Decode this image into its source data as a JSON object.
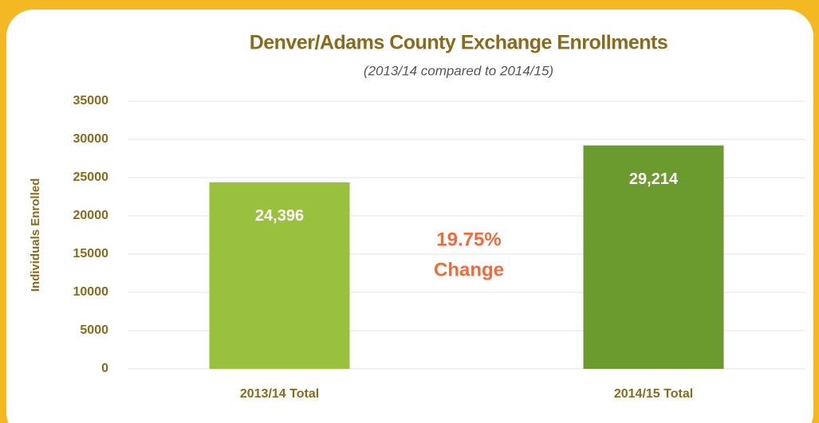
{
  "chart_data": {
    "type": "bar",
    "title": "Denver/Adams County Exchange Enrollments",
    "subtitle": "(2013/14 compared to 2014/15)",
    "y_label": "Individuals Enrolled",
    "categories": [
      "2013/14 Total",
      "2014/15 Total"
    ],
    "values": [
      24396,
      29214
    ],
    "value_labels": [
      "24,396",
      "29,214"
    ],
    "colors": [
      "#99c13d",
      "#6b9a2e"
    ],
    "annotation": [
      "19.75%",
      "Change"
    ],
    "annotation_color": "#ef6b3d",
    "ylim": [
      0,
      35000
    ],
    "yticks": [
      0,
      5000,
      10000,
      15000,
      20000,
      25000,
      30000,
      35000
    ],
    "grid": true
  }
}
